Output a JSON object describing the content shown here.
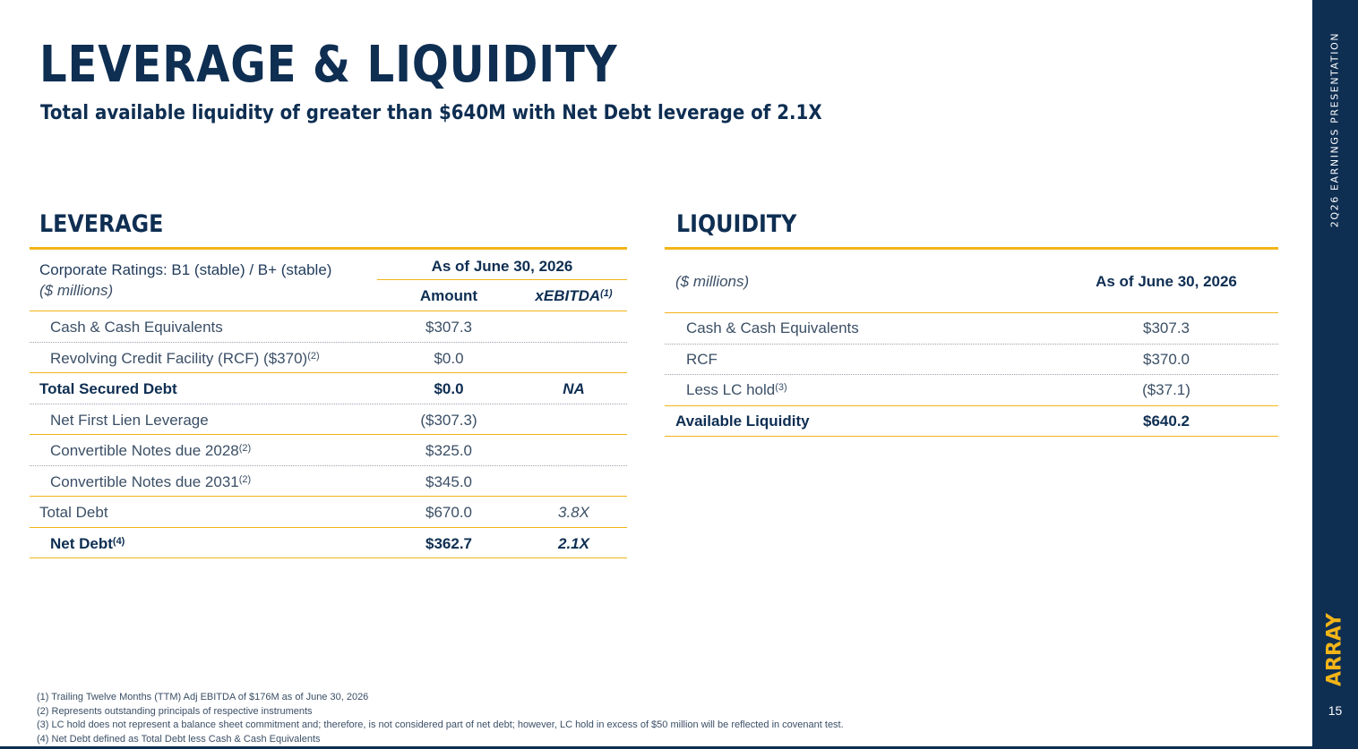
{
  "header": {
    "title": "LEVERAGE & LIQUIDITY",
    "subtitle": "Total available liquidity of greater than $640M with Net Debt leverage of 2.1X"
  },
  "leverage": {
    "section_title": "LEVERAGE",
    "ratings": "Corporate Ratings: B1 (stable) / B+ (stable)",
    "units": "($ millions)",
    "as_of": "As of June 30, 2026",
    "col_amount": "Amount",
    "col_xebitda": "xEBITDA",
    "col_xebitda_note": "(1)",
    "rows": [
      {
        "label": "Cash & Cash Equivalents",
        "note": "",
        "amount": "$307.3",
        "xebitda": ""
      },
      {
        "label": "Revolving Credit Facility (RCF) ($370)",
        "note": "(2)",
        "amount": "$0.0",
        "xebitda": ""
      },
      {
        "label": "Total Secured Debt",
        "note": "",
        "amount": "$0.0",
        "xebitda": "NA"
      },
      {
        "label": "Net First Lien Leverage",
        "note": "",
        "amount": "($307.3)",
        "xebitda": ""
      },
      {
        "label": "Convertible Notes due 2028",
        "note": "(2)",
        "amount": "$325.0",
        "xebitda": ""
      },
      {
        "label": "Convertible Notes due 2031",
        "note": "(2)",
        "amount": "$345.0",
        "xebitda": ""
      },
      {
        "label": "Total Debt",
        "note": "",
        "amount": "$670.0",
        "xebitda": "3.8X"
      },
      {
        "label": "Net Debt",
        "note": "(4)",
        "amount": "$362.7",
        "xebitda": "2.1X"
      }
    ]
  },
  "liquidity": {
    "section_title": "LIQUIDITY",
    "units": "($ millions)",
    "as_of": "As of June 30, 2026",
    "rows": [
      {
        "label": "Cash & Cash Equivalents",
        "note": "",
        "amount": "$307.3"
      },
      {
        "label": "RCF",
        "note": "",
        "amount": "$370.0"
      },
      {
        "label": "Less LC hold",
        "note": "(3)",
        "amount": "($37.1)"
      },
      {
        "label": "Available Liquidity",
        "note": "",
        "amount": "$640.2"
      }
    ]
  },
  "footnotes": [
    "(1) Trailing Twelve Months (TTM) Adj EBITDA of $176M as of June 30, 2026",
    "(2) Represents outstanding principals of respective instruments",
    "(3) LC hold does not represent a balance sheet commitment and; therefore, is not considered part of net debt; however, LC hold in excess of $50 million will be reflected in covenant test.",
    "(4) Net Debt defined as Total Debt less Cash & Cash Equivalents"
  ],
  "sidebar": {
    "label": "2Q26 EARNINGS PRESENTATION",
    "logo": "ARRAY",
    "page_number": "15"
  },
  "colors": {
    "navy": "#0e2e52",
    "gold": "#f2b418",
    "text": "#3b4f66"
  }
}
